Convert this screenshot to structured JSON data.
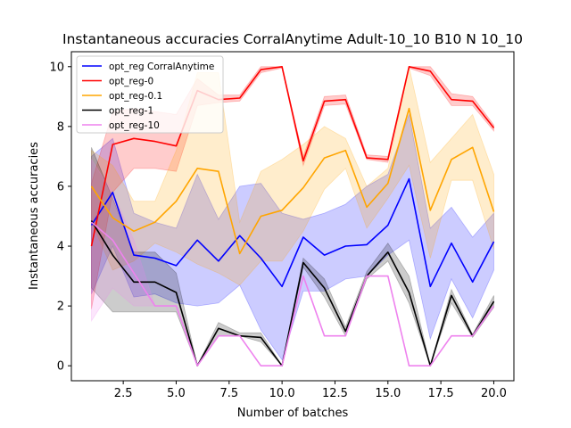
{
  "chart_data": {
    "type": "line",
    "title": "Instantaneous accuracies CorralAnytime Adult-10_10 B10 N 10_10",
    "xlabel": "Number of batches",
    "ylabel": "Instantaneous accuracies",
    "xlim": [
      0.05,
      20.95
    ],
    "ylim": [
      -0.5,
      10.5
    ],
    "xticks": [
      "2.5",
      "5.0",
      "7.5",
      "10.0",
      "12.5",
      "15.0",
      "17.5",
      "20.0"
    ],
    "xtick_values": [
      2.5,
      5.0,
      7.5,
      10.0,
      12.5,
      15.0,
      17.5,
      20.0
    ],
    "yticks": [
      "0",
      "2",
      "4",
      "6",
      "8",
      "10"
    ],
    "ytick_values": [
      0,
      2,
      4,
      6,
      8,
      10
    ],
    "grid": false,
    "legend_position": "top-left",
    "x": [
      1,
      2,
      3,
      4,
      5,
      6,
      7,
      8,
      9,
      10,
      11,
      12,
      13,
      14,
      15,
      16,
      17,
      18,
      19,
      20
    ],
    "series": [
      {
        "name": "opt_reg CorralAnytime",
        "color": "#0000ff",
        "band_opacity": 0.2,
        "values": [
          4.7,
          5.8,
          3.7,
          3.6,
          3.35,
          4.2,
          3.5,
          4.35,
          3.6,
          2.65,
          4.3,
          3.7,
          4.0,
          4.05,
          4.7,
          6.25,
          2.65,
          4.1,
          2.8,
          4.15
        ],
        "lower": [
          2.4,
          4.0,
          2.3,
          2.4,
          2.1,
          2.0,
          2.1,
          2.7,
          1.2,
          0.2,
          2.5,
          2.5,
          2.9,
          3.0,
          3.7,
          4.2,
          0.9,
          2.9,
          1.6,
          3.2
        ],
        "upper": [
          7.0,
          7.6,
          5.1,
          4.8,
          4.6,
          6.4,
          4.9,
          6.0,
          6.1,
          5.1,
          4.9,
          5.1,
          5.4,
          6.0,
          6.4,
          8.4,
          4.6,
          5.3,
          4.3,
          5.1
        ]
      },
      {
        "name": "opt_reg-0",
        "color": "#ff0000",
        "band_opacity": 0.2,
        "values": [
          4.0,
          7.4,
          7.6,
          7.5,
          7.35,
          9.2,
          8.9,
          8.95,
          9.9,
          10.0,
          6.85,
          8.85,
          8.9,
          6.95,
          6.9,
          10.0,
          9.85,
          8.9,
          8.85,
          7.95
        ],
        "lower": [
          1.9,
          5.8,
          6.6,
          6.6,
          6.5,
          8.7,
          8.8,
          8.85,
          9.8,
          9.95,
          6.7,
          8.7,
          8.75,
          6.9,
          6.8,
          9.95,
          9.7,
          8.7,
          8.7,
          7.85
        ],
        "upper": [
          6.1,
          8.5,
          8.6,
          8.5,
          8.4,
          9.6,
          9.05,
          9.05,
          10.0,
          10.0,
          7.0,
          9.0,
          9.05,
          7.05,
          7.0,
          10.0,
          10.0,
          9.1,
          9.0,
          8.05
        ]
      },
      {
        "name": "opt_reg-0.1",
        "color": "#ffa500",
        "band_opacity": 0.2,
        "values": [
          6.0,
          4.95,
          4.5,
          4.8,
          5.5,
          6.6,
          6.5,
          3.75,
          5.0,
          5.2,
          5.95,
          6.95,
          7.2,
          5.3,
          6.1,
          8.6,
          5.2,
          6.9,
          7.3,
          5.15
        ],
        "lower": [
          4.8,
          3.2,
          3.5,
          4.1,
          3.8,
          3.4,
          3.1,
          2.7,
          3.5,
          3.5,
          4.5,
          5.9,
          6.6,
          4.6,
          5.6,
          6.7,
          3.6,
          6.2,
          6.2,
          3.9
        ],
        "upper": [
          7.2,
          6.7,
          5.5,
          5.5,
          7.2,
          9.8,
          9.8,
          4.8,
          6.5,
          6.9,
          7.4,
          8.0,
          7.6,
          6.0,
          6.6,
          10.0,
          6.8,
          7.6,
          8.4,
          6.4
        ]
      },
      {
        "name": "opt_reg-1",
        "color": "#000000",
        "band_opacity": 0.2,
        "values": [
          4.85,
          3.7,
          2.8,
          2.8,
          2.45,
          0.0,
          1.25,
          1.0,
          0.95,
          0.0,
          3.45,
          2.6,
          1.15,
          3.0,
          3.8,
          2.45,
          0.0,
          2.35,
          1.0,
          2.15
        ],
        "lower": [
          2.6,
          1.8,
          1.8,
          1.8,
          1.8,
          0.0,
          1.0,
          1.0,
          0.8,
          0.0,
          3.3,
          2.3,
          1.0,
          2.9,
          3.5,
          2.1,
          0.0,
          2.1,
          0.95,
          1.95
        ],
        "upper": [
          7.3,
          5.6,
          3.8,
          3.8,
          3.1,
          0.0,
          1.45,
          1.1,
          1.1,
          0.0,
          3.6,
          2.9,
          1.3,
          3.15,
          4.1,
          3.0,
          0.0,
          2.55,
          1.05,
          2.35
        ]
      },
      {
        "name": "opt_reg-10",
        "color": "#ee82ee",
        "band_opacity": 0.2,
        "values": [
          4.8,
          4.2,
          3.1,
          2.0,
          2.0,
          0.0,
          1.0,
          1.0,
          0.0,
          0.0,
          3.0,
          1.0,
          1.0,
          3.0,
          3.0,
          0.0,
          0.0,
          1.0,
          1.0,
          2.0
        ],
        "lower": [
          1.5,
          2.6,
          2.0,
          2.0,
          2.0,
          0.0,
          1.0,
          1.0,
          0.0,
          0.0,
          3.0,
          1.0,
          1.0,
          3.0,
          3.0,
          0.0,
          0.0,
          1.0,
          1.0,
          2.0
        ],
        "upper": [
          6.9,
          5.8,
          4.2,
          2.0,
          2.0,
          0.0,
          1.0,
          1.0,
          0.0,
          0.0,
          3.0,
          1.0,
          1.0,
          3.0,
          3.0,
          0.0,
          0.0,
          1.0,
          1.0,
          2.0
        ]
      }
    ]
  }
}
